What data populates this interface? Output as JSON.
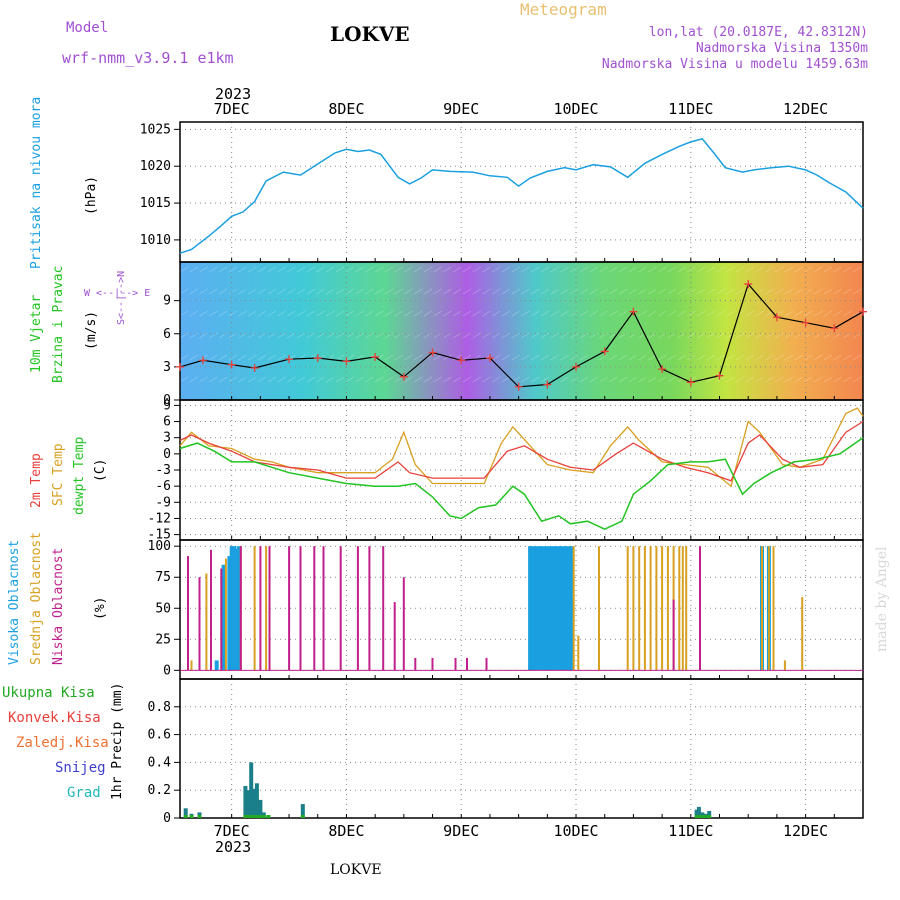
{
  "header": {
    "model_label": "Model",
    "model_name": "wrf-nmm_v3.9.1 e1km",
    "station": "LOKVE",
    "title": "Meteogram",
    "coords": "lon,lat (20.0187E, 42.8312N)",
    "elevation": "Nadmorska Visina 1350m",
    "model_elevation": "Nadmorska Visina u modelu 1459.63m",
    "year_top": "2023",
    "year_bottom": "2023",
    "footer_station": "LOKVE",
    "watermark": "made by Angel"
  },
  "colors": {
    "pressure": "#1aa0e0",
    "temp2m": "#e8403a",
    "sfc": "#d8a020",
    "dewpt": "#22c422",
    "high_cloud": "#1aa0e0",
    "mid_cloud": "#d8a020",
    "low_cloud": "#c0208c",
    "total_precip": "#22aa22",
    "grad": "#22b8b8",
    "title_purple": "#a050d0",
    "title_orange": "#e8c070"
  },
  "days": [
    "7DEC",
    "8DEC",
    "9DEC",
    "10DEC",
    "11DEC",
    "12DEC"
  ],
  "panels": {
    "pressure": {
      "labels": [
        "Pritisak na nivou mora",
        "(hPa)"
      ],
      "ticks": [
        "1010",
        "1015",
        "1020",
        "1025"
      ]
    },
    "wind": {
      "labels": [
        "10m Vjetar",
        "Brzina i Pravac",
        "(m/s)"
      ],
      "compass": [
        "W <--|--> E",
        "S<--|-->N"
      ],
      "ticks": [
        "0",
        "3",
        "6",
        "9"
      ]
    },
    "temp": {
      "labels": [
        "2m Temp",
        "SFC Temp",
        "dewpt Temp",
        "(C)"
      ],
      "ticks": [
        "-15",
        "-12",
        "-9",
        "-6",
        "-3",
        "0",
        "3",
        "6",
        "9"
      ]
    },
    "cloud": {
      "labels": [
        "Visoka Oblacnost",
        "Srednja Oblacnost",
        "Niska Oblacnost",
        "(%)"
      ],
      "ticks": [
        "0",
        "25",
        "50",
        "75",
        "100"
      ]
    },
    "precip": {
      "legend": [
        "Ukupna Kisa",
        "Konvek.Kisa",
        "Zaledj.Kisa",
        "Snijeg",
        "Grad"
      ],
      "axis_label": "1hr Precip (mm)",
      "ticks": [
        "0",
        "0.2",
        "0.4",
        "0.6",
        "0.8"
      ]
    }
  },
  "chart_data": [
    {
      "type": "line",
      "name": "pressure",
      "ylabel": "(hPa)",
      "ylim": [
        1007,
        1026
      ],
      "x_day_range": [
        6.55,
        12.5
      ],
      "series": [
        {
          "name": "Pritisak na nivou mora",
          "x": [
            6.55,
            6.65,
            6.8,
            6.9,
            7.0,
            7.1,
            7.2,
            7.3,
            7.45,
            7.6,
            7.75,
            7.9,
            8.0,
            8.1,
            8.2,
            8.3,
            8.45,
            8.55,
            8.65,
            8.75,
            8.9,
            9.1,
            9.25,
            9.4,
            9.5,
            9.6,
            9.75,
            9.9,
            10.0,
            10.15,
            10.3,
            10.45,
            10.6,
            10.75,
            10.9,
            11.0,
            11.1,
            11.2,
            11.3,
            11.45,
            11.55,
            11.7,
            11.85,
            12.0,
            12.1,
            12.2,
            12.35,
            12.5
          ],
          "values": [
            1008.2,
            1008.7,
            1010.5,
            1011.8,
            1013.2,
            1013.8,
            1015.2,
            1018.0,
            1019.2,
            1018.8,
            1020.3,
            1021.8,
            1022.3,
            1022.0,
            1022.2,
            1021.6,
            1018.5,
            1017.6,
            1018.4,
            1019.5,
            1019.3,
            1019.2,
            1018.7,
            1018.5,
            1017.3,
            1018.4,
            1019.3,
            1019.8,
            1019.5,
            1020.2,
            1019.9,
            1018.5,
            1020.4,
            1021.6,
            1022.7,
            1023.3,
            1023.7,
            1021.8,
            1019.8,
            1019.2,
            1019.5,
            1019.8,
            1020.0,
            1019.5,
            1018.8,
            1017.8,
            1016.5,
            1014.3
          ]
        }
      ]
    },
    {
      "type": "line",
      "name": "wind",
      "ylabel": "(m/s)",
      "ylim": [
        0,
        12.5
      ],
      "x_day_range": [
        6.55,
        12.5
      ],
      "series": [
        {
          "name": "10m Vjetar",
          "x": [
            6.55,
            6.75,
            7.0,
            7.2,
            7.5,
            7.75,
            8.0,
            8.25,
            8.5,
            8.75,
            9.0,
            9.25,
            9.5,
            9.75,
            10.0,
            10.25,
            10.5,
            10.75,
            11.0,
            11.25,
            11.5,
            11.75,
            12.0,
            12.25,
            12.5
          ],
          "values": [
            3.0,
            3.6,
            3.2,
            2.9,
            3.7,
            3.8,
            3.5,
            3.9,
            2.1,
            4.3,
            3.6,
            3.8,
            1.2,
            1.4,
            3.0,
            4.4,
            8.0,
            2.8,
            1.6,
            2.2,
            10.5,
            7.5,
            7.0,
            6.5,
            8.0
          ]
        }
      ]
    },
    {
      "type": "line",
      "name": "temperature",
      "ylabel": "(C)",
      "ylim": [
        -16,
        10
      ],
      "x_day_range": [
        6.55,
        12.5
      ],
      "series": [
        {
          "name": "2m Temp",
          "x": [
            6.55,
            6.65,
            6.8,
            7.0,
            7.2,
            7.5,
            7.75,
            8.0,
            8.25,
            8.45,
            8.55,
            8.75,
            9.0,
            9.2,
            9.4,
            9.55,
            9.75,
            9.95,
            10.15,
            10.35,
            10.5,
            10.75,
            10.95,
            11.15,
            11.35,
            11.5,
            11.6,
            11.8,
            11.95,
            12.15,
            12.35,
            12.5
          ],
          "values": [
            2.5,
            3.5,
            2.0,
            0.5,
            -1.5,
            -2.5,
            -3.0,
            -4.5,
            -4.5,
            -1.5,
            -3.5,
            -4.5,
            -4.5,
            -4.5,
            0.5,
            1.5,
            -1.0,
            -2.5,
            -3.0,
            0.0,
            2.0,
            -1.0,
            -2.5,
            -3.5,
            -5.0,
            2.0,
            3.5,
            -1.0,
            -2.5,
            -2.0,
            4.0,
            6.0
          ]
        },
        {
          "name": "SFC Temp",
          "x": [
            6.55,
            6.65,
            6.8,
            7.0,
            7.2,
            7.35,
            7.5,
            7.75,
            8.0,
            8.25,
            8.4,
            8.5,
            8.6,
            8.75,
            9.0,
            9.2,
            9.35,
            9.45,
            9.6,
            9.75,
            9.95,
            10.15,
            10.3,
            10.45,
            10.55,
            10.75,
            10.95,
            11.15,
            11.35,
            11.5,
            11.6,
            11.8,
            11.95,
            12.15,
            12.35,
            12.45,
            12.5
          ],
          "values": [
            1.5,
            4.0,
            1.5,
            1.0,
            -1.0,
            -1.5,
            -2.5,
            -3.5,
            -3.5,
            -3.5,
            -1.0,
            4.0,
            -2.0,
            -5.5,
            -5.5,
            -5.5,
            2.0,
            5.0,
            1.5,
            -2.0,
            -3.0,
            -3.5,
            1.5,
            5.0,
            2.5,
            -1.5,
            -2.0,
            -2.5,
            -6.0,
            6.0,
            4.0,
            -2.0,
            -2.5,
            -1.0,
            7.5,
            8.5,
            7.0
          ]
        },
        {
          "name": "dewpt Temp",
          "x": [
            6.55,
            6.7,
            6.85,
            7.0,
            7.2,
            7.35,
            7.5,
            7.75,
            8.0,
            8.25,
            8.45,
            8.6,
            8.75,
            8.9,
            9.0,
            9.15,
            9.3,
            9.45,
            9.55,
            9.7,
            9.85,
            9.95,
            10.1,
            10.25,
            10.4,
            10.5,
            10.65,
            10.8,
            11.0,
            11.15,
            11.3,
            11.45,
            11.55,
            11.7,
            11.9,
            12.1,
            12.3,
            12.5
          ],
          "values": [
            1.0,
            2.0,
            0.5,
            -1.5,
            -1.5,
            -2.5,
            -3.5,
            -4.5,
            -5.5,
            -6.0,
            -6.0,
            -5.5,
            -8.0,
            -11.5,
            -12.0,
            -10.0,
            -9.5,
            -6.0,
            -7.5,
            -12.5,
            -11.5,
            -13.0,
            -12.5,
            -14.0,
            -12.5,
            -7.5,
            -5.0,
            -2.0,
            -1.5,
            -1.5,
            -1.0,
            -7.5,
            -5.5,
            -3.5,
            -1.5,
            -1.0,
            0.0,
            3.0
          ]
        }
      ]
    },
    {
      "type": "bar",
      "name": "cloud",
      "ylabel": "(%)",
      "ylim": [
        0,
        100
      ],
      "x_day_range": [
        6.55,
        12.5
      ],
      "series": [
        {
          "name": "Visoka Oblacnost",
          "x": [
            6.87,
            6.93,
            6.98,
            7.0,
            7.02,
            7.04,
            7.06,
            9.6,
            9.63,
            9.66,
            9.69,
            9.72,
            9.75,
            9.78,
            9.81,
            9.84,
            9.87,
            9.9,
            9.93,
            9.96,
            11.62,
            11.68
          ],
          "values": [
            8,
            85,
            92,
            100,
            100,
            98,
            100,
            100,
            100,
            100,
            100,
            100,
            100,
            100,
            100,
            100,
            100,
            100,
            100,
            100,
            100,
            100
          ]
        },
        {
          "name": "Srednja Oblacnost",
          "x": [
            6.65,
            6.78,
            6.95,
            7.08,
            7.2,
            7.3,
            9.98,
            10.02,
            10.2,
            10.45,
            10.5,
            10.55,
            10.6,
            10.65,
            10.7,
            10.75,
            10.8,
            10.85,
            10.9,
            10.93,
            10.96,
            11.62,
            11.68,
            11.72,
            11.82,
            11.97
          ],
          "values": [
            8,
            78,
            90,
            100,
            100,
            100,
            100,
            28,
            100,
            100,
            100,
            100,
            100,
            100,
            100,
            100,
            100,
            100,
            100,
            100,
            100,
            100,
            100,
            100,
            8,
            59
          ]
        },
        {
          "name": "Niska Oblacnost",
          "x": [
            6.62,
            6.72,
            6.82,
            6.91,
            7.08,
            7.25,
            7.33,
            7.5,
            7.6,
            7.72,
            7.8,
            7.95,
            8.1,
            8.2,
            8.32,
            8.42,
            8.5,
            8.6,
            8.75,
            8.95,
            9.05,
            9.22,
            10.85,
            11.08
          ],
          "values": [
            92,
            75,
            97,
            82,
            100,
            100,
            100,
            100,
            100,
            100,
            100,
            100,
            100,
            100,
            100,
            55,
            75,
            10,
            10,
            10,
            10,
            10,
            57,
            100
          ]
        }
      ]
    },
    {
      "type": "bar",
      "name": "precip",
      "ylabel": "1hr Precip (mm)",
      "ylim": [
        0,
        1.0
      ],
      "x_day_range": [
        6.55,
        12.5
      ],
      "series": [
        {
          "name": "Ukupna Kisa",
          "x": [
            6.6,
            6.65,
            6.72,
            7.12,
            7.15,
            7.17,
            7.2,
            7.22,
            7.25,
            7.28,
            7.32,
            7.62,
            11.05,
            11.07,
            11.1,
            11.13,
            11.16
          ],
          "values": [
            0.07,
            0.03,
            0.04,
            0.23,
            0.2,
            0.4,
            0.21,
            0.25,
            0.13,
            0.04,
            0.02,
            0.1,
            0.06,
            0.08,
            0.04,
            0.03,
            0.05
          ]
        }
      ]
    }
  ]
}
